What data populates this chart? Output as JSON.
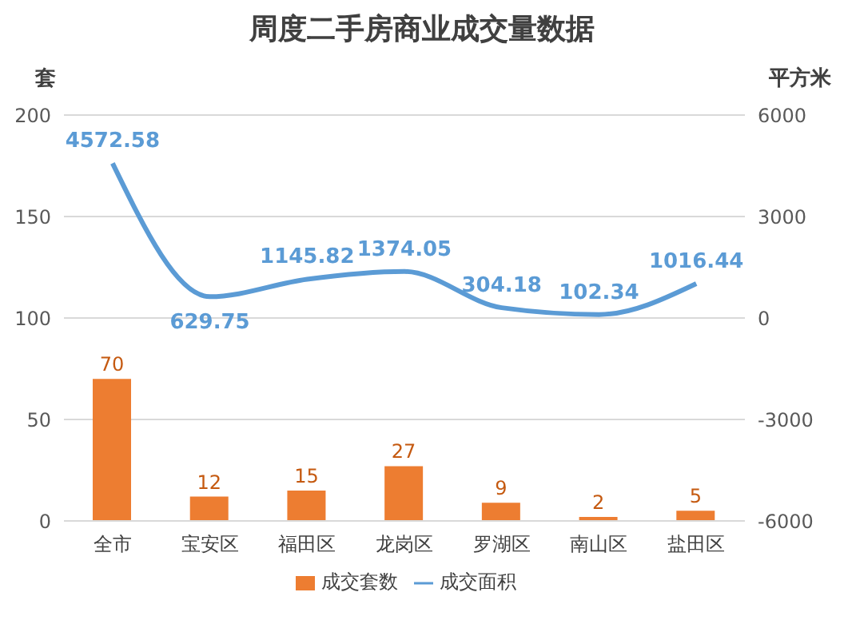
{
  "chart_data": {
    "type": "bar",
    "title": "周度二手房商业成交量数据",
    "ylabel": "套",
    "y2label": "平方米",
    "categories": [
      "全市",
      "宝安区",
      "福田区",
      "龙岗区",
      "罗湖区",
      "南山区",
      "盐田区"
    ],
    "series": [
      {
        "name": "成交套数",
        "color": "#ed7d31",
        "values": [
          70,
          12,
          15,
          27,
          9,
          2,
          5
        ]
      },
      {
        "name": "成交面积",
        "type": "line",
        "axis": "y2",
        "color": "#5b9bd5",
        "values": [
          4572.58,
          629.75,
          1145.82,
          1374.05,
          304.18,
          102.34,
          1016.44
        ]
      }
    ],
    "ylim": [
      0,
      200
    ],
    "yticks": [
      0,
      50,
      100,
      150,
      200
    ],
    "y2lim": [
      -6000,
      6000
    ],
    "y2ticks": [
      -6000,
      -3000,
      0,
      3000,
      6000
    ],
    "grid": "y",
    "legend": "bottom",
    "marker": "none",
    "data_labels": true
  }
}
